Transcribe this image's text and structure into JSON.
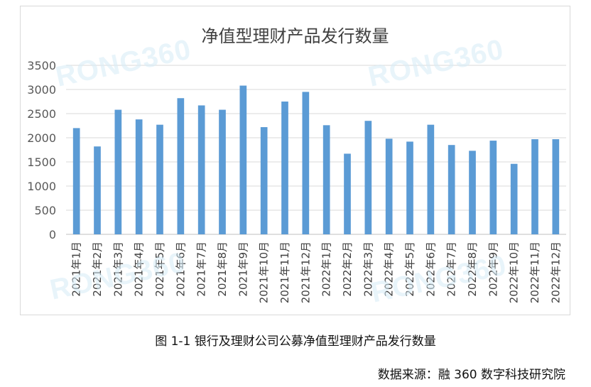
{
  "chart_data": {
    "type": "bar",
    "title": "净值型理财产品发行数量",
    "xlabel": "",
    "ylabel": "",
    "ylim": [
      0,
      3500
    ],
    "yticks": [
      0,
      500,
      1000,
      1500,
      2000,
      2500,
      3000,
      3500
    ],
    "grid": true,
    "legend": "none",
    "bar_color": "#5b9bd5",
    "categories": [
      "2021年1月",
      "2021年2月",
      "2021年3月",
      "2021年4月",
      "2021年5月",
      "2021年6月",
      "2021年7月",
      "2021年8月",
      "2021年9月",
      "2021年10月",
      "2021年11月",
      "2021年12月",
      "2022年1月",
      "2022年2月",
      "2022年3月",
      "2022年4月",
      "2022年5月",
      "2022年6月",
      "2022年7月",
      "2022年8月",
      "2022年9月",
      "2022年10月",
      "2022年11月",
      "2022年12月"
    ],
    "values": [
      2200,
      1820,
      2580,
      2380,
      2270,
      2820,
      2670,
      2580,
      3080,
      2220,
      2750,
      2950,
      2260,
      1670,
      2350,
      1980,
      1920,
      2270,
      1850,
      1730,
      1940,
      1460,
      1970,
      1970
    ]
  },
  "watermark": "RONG360",
  "caption": "图 1-1 银行及理财公司公募净值型理财产品发行数量",
  "source": "数据来源：融 360 数字科技研究院"
}
